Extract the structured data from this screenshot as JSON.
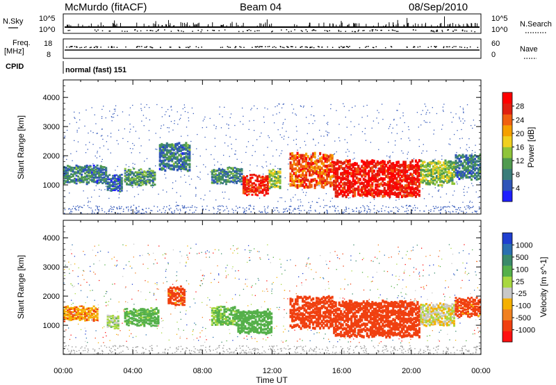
{
  "header": {
    "station": "McMurdo (fitACF)",
    "beam": "Beam 04",
    "date": "08/Sep/2010"
  },
  "sidebar_labels": {
    "nsky": "N.Sky",
    "nsearch": "N.Search",
    "freq_line1": "Freq.",
    "freq_line2": "[MHz]",
    "nave": "Nave",
    "cpid": "CPID"
  },
  "strip_ticks": {
    "noise_left_top": "10^5",
    "noise_left_bottom": "10^0",
    "noise_right_top": "10^5",
    "noise_right_bottom": "10^0",
    "freq_left_top": "18",
    "freq_left_bottom": "8",
    "nave_right_top": "60",
    "nave_right_bottom": "0"
  },
  "cpid_text": "normal (fast) 151",
  "colors": {
    "power_scale": [
      "#1f1fff",
      "#2f55b8",
      "#3a7d7a",
      "#4f9a4f",
      "#8fc43a",
      "#f0d020",
      "#f5a000",
      "#f06010",
      "#e02010",
      "#ff0000"
    ],
    "velocity_scale": [
      "#1f3fd0",
      "#2a6fb0",
      "#3a8a6a",
      "#55b04a",
      "#a8d840",
      "#c8c8c8",
      "#f5b000",
      "#f08020",
      "#f04010",
      "#ff1010"
    ]
  },
  "chart_data": [
    {
      "type": "heatmap",
      "title": "",
      "xlabel": "",
      "ylabel": "Slant Range [km]",
      "x_ticks": [
        "00:00",
        "04:00",
        "08:00",
        "12:00",
        "16:00",
        "20:00",
        "00:00"
      ],
      "y_ticks": [
        "1000",
        "2000",
        "3000",
        "4000"
      ],
      "ylim": [
        0,
        4600
      ],
      "colorbar": {
        "label": "Power [dB]",
        "ticks": [
          "4",
          "8",
          "12",
          "16",
          "20",
          "24",
          "28"
        ],
        "range": [
          0,
          32
        ]
      },
      "regions": [
        {
          "t0": 0.0,
          "t1": 2.5,
          "r0": 1050,
          "r1": 1650,
          "level": 8
        },
        {
          "t0": 2.5,
          "t1": 3.4,
          "r0": 800,
          "r1": 1300,
          "level": 6
        },
        {
          "t0": 3.5,
          "t1": 5.3,
          "r0": 1000,
          "r1": 1500,
          "level": 10
        },
        {
          "t0": 5.5,
          "t1": 7.3,
          "r0": 1500,
          "r1": 2400,
          "level": 8
        },
        {
          "t0": 8.5,
          "t1": 10.3,
          "r0": 1050,
          "r1": 1550,
          "level": 9
        },
        {
          "t0": 10.3,
          "t1": 11.8,
          "r0": 650,
          "r1": 1300,
          "level": 27
        },
        {
          "t0": 11.8,
          "t1": 12.5,
          "r0": 900,
          "r1": 1500,
          "level": 14
        },
        {
          "t0": 13.0,
          "t1": 15.5,
          "r0": 900,
          "r1": 2050,
          "level": 25
        },
        {
          "t0": 15.5,
          "t1": 20.5,
          "r0": 600,
          "r1": 1800,
          "level": 29
        },
        {
          "t0": 20.5,
          "t1": 22.5,
          "r0": 1000,
          "r1": 1800,
          "level": 14
        },
        {
          "t0": 22.5,
          "t1": 24.0,
          "r0": 1200,
          "r1": 2000,
          "level": 8
        }
      ]
    },
    {
      "type": "heatmap",
      "title": "",
      "xlabel": "Time UT",
      "ylabel": "Slant Range [km]",
      "x_ticks": [
        "00:00",
        "04:00",
        "08:00",
        "12:00",
        "16:00",
        "20:00",
        "00:00"
      ],
      "y_ticks": [
        "1000",
        "2000",
        "3000",
        "4000"
      ],
      "ylim": [
        0,
        4600
      ],
      "colorbar": {
        "label": "Velocity [m s^-1]",
        "ticks": [
          "1000",
          "500",
          "100",
          "25",
          "-25",
          "-100",
          "-500",
          "-1000"
        ],
        "range": [
          -1000,
          1000
        ]
      },
      "regions": [
        {
          "t0": 0.0,
          "t1": 2.0,
          "r0": 1150,
          "r1": 1600,
          "level": -80
        },
        {
          "t0": 2.5,
          "t1": 3.2,
          "r0": 900,
          "r1": 1300,
          "level": 60
        },
        {
          "t0": 3.5,
          "t1": 5.5,
          "r0": 1000,
          "r1": 1550,
          "level": 150
        },
        {
          "t0": 6.0,
          "t1": 7.0,
          "r0": 1700,
          "r1": 2300,
          "level": -150
        },
        {
          "t0": 8.5,
          "t1": 10.0,
          "r0": 1000,
          "r1": 1600,
          "level": 120
        },
        {
          "t0": 10.0,
          "t1": 12.0,
          "r0": 700,
          "r1": 1500,
          "level": 300
        },
        {
          "t0": 13.0,
          "t1": 15.5,
          "r0": 900,
          "r1": 1950,
          "level": -200
        },
        {
          "t0": 15.5,
          "t1": 20.5,
          "r0": 600,
          "r1": 1800,
          "level": -350
        },
        {
          "t0": 20.5,
          "t1": 22.5,
          "r0": 1000,
          "r1": 1700,
          "level": 0
        },
        {
          "t0": 22.5,
          "t1": 24.0,
          "r0": 1300,
          "r1": 1900,
          "level": -150
        }
      ]
    }
  ]
}
